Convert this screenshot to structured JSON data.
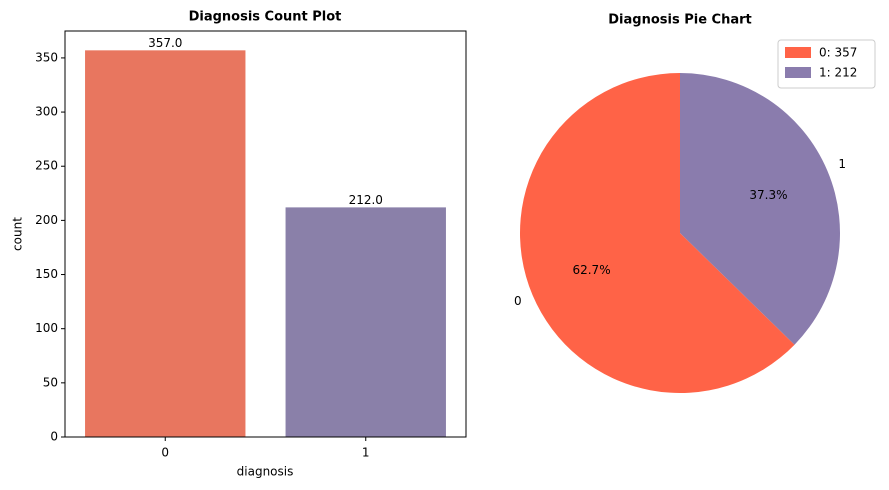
{
  "chart_data": [
    {
      "type": "bar",
      "title": "Diagnosis Count Plot",
      "x_label": "diagnosis",
      "y_label": "count",
      "categories": [
        "0",
        "1"
      ],
      "values": [
        357,
        212
      ],
      "value_labels": [
        "357.0",
        "212.0"
      ],
      "colors": [
        "#e8765f",
        "#8a80a9"
      ],
      "ylim": [
        0,
        374.85
      ],
      "yticks": [
        0,
        50,
        100,
        150,
        200,
        250,
        300,
        350
      ]
    },
    {
      "type": "pie",
      "title": "Diagnosis Pie Chart",
      "categories": [
        "0",
        "1"
      ],
      "values": [
        62.7,
        37.3
      ],
      "value_labels": [
        "62.7%",
        "37.3%"
      ],
      "colors": [
        "#ff6347",
        "#8a7cad"
      ],
      "legend": [
        "0: 357",
        "1: 212"
      ],
      "legend_position": "upper right"
    }
  ]
}
